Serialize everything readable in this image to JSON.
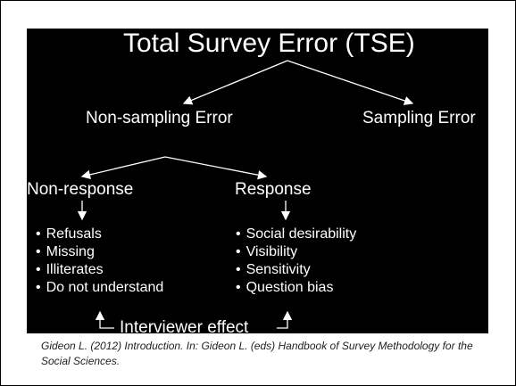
{
  "diagram": {
    "title": "Total Survey Error (TSE)",
    "branches": {
      "non_sampling": "Non-sampling Error",
      "sampling": "Sampling Error"
    },
    "sub_branches": {
      "non_response": {
        "label": "Non-response",
        "items": [
          "Refusals",
          "Missing",
          "Illiterates",
          "Do not understand"
        ]
      },
      "response": {
        "label": "Response",
        "items": [
          "Social desirability",
          "Visibility",
          "Sensitivity",
          "Question bias"
        ]
      }
    },
    "footer_label": "Interviewer effect"
  },
  "caption": "Gideon L. (2012) Introduction. In: Gideon L. (eds) Handbook of Survey Methodology for the Social Sciences."
}
